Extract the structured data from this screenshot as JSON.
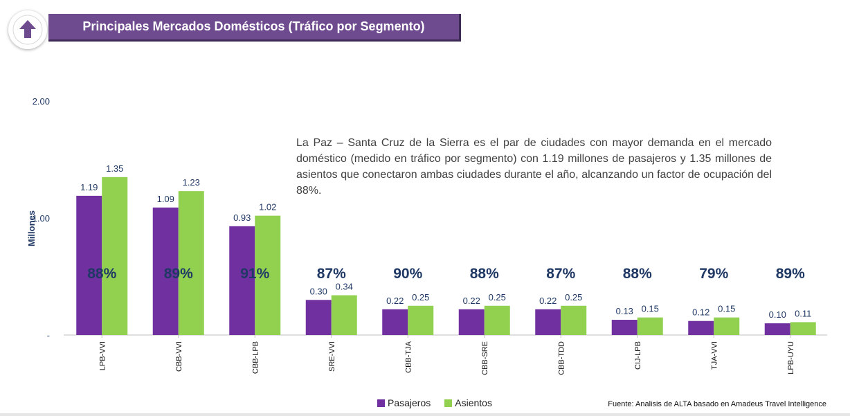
{
  "header": {
    "title": "Principales Mercados Domésticos (Tráfico por Segmento)",
    "icon": "arrow-up-icon",
    "icon_color": "#6e4a8e",
    "bar_color": "#6e4a8e"
  },
  "description": "La Paz – Santa Cruz de la Sierra es el par de ciudades con mayor demanda en el mercado doméstico (medido en tráfico por segmento) con 1.19 millones de pasajeros y 1.35 millones de asientos que conectaron ambas ciudades durante el año, alcanzando un factor de ocupación del 88%.",
  "source": "Fuente: Analisis de ALTA basado en Amadeus Travel Intelligence",
  "chart_data": {
    "type": "bar",
    "ylabel": "Millones",
    "ylim": [
      0,
      2.0
    ],
    "yticks": [
      0,
      1.0,
      2.0
    ],
    "ytick_labels": [
      "-",
      "1.00",
      "2.00"
    ],
    "categories": [
      "LPB-VVI",
      "CBB-VVI",
      "CBB-LPB",
      "SRE-VVI",
      "CBB-TJA",
      "CBB-SRE",
      "CBB-TDD",
      "CIJ-LPB",
      "TJA-VVI",
      "LPB-UYU"
    ],
    "series": [
      {
        "name": "Pasajeros",
        "color": "#7030a0",
        "values": [
          1.19,
          1.09,
          0.93,
          0.3,
          0.22,
          0.22,
          0.22,
          0.13,
          0.12,
          0.1
        ],
        "labels": [
          "1.19",
          "1.09",
          "0.93",
          "0.30",
          "0.22",
          "0.22",
          "0.22",
          "0.13",
          "0.12",
          "0.10"
        ]
      },
      {
        "name": "Asientos",
        "color": "#92d050",
        "values": [
          1.35,
          1.23,
          1.02,
          0.34,
          0.25,
          0.25,
          0.25,
          0.15,
          0.15,
          0.11
        ],
        "labels": [
          "1.35",
          "1.23",
          "1.02",
          "0.34",
          "0.25",
          "0.25",
          "0.25",
          "0.15",
          "0.15",
          "0.11"
        ]
      }
    ],
    "load_factors": [
      "88%",
      "89%",
      "91%",
      "87%",
      "90%",
      "88%",
      "87%",
      "88%",
      "79%",
      "89%"
    ],
    "load_factor_color": "#1f3864",
    "legend": "bottom",
    "grid": false
  }
}
